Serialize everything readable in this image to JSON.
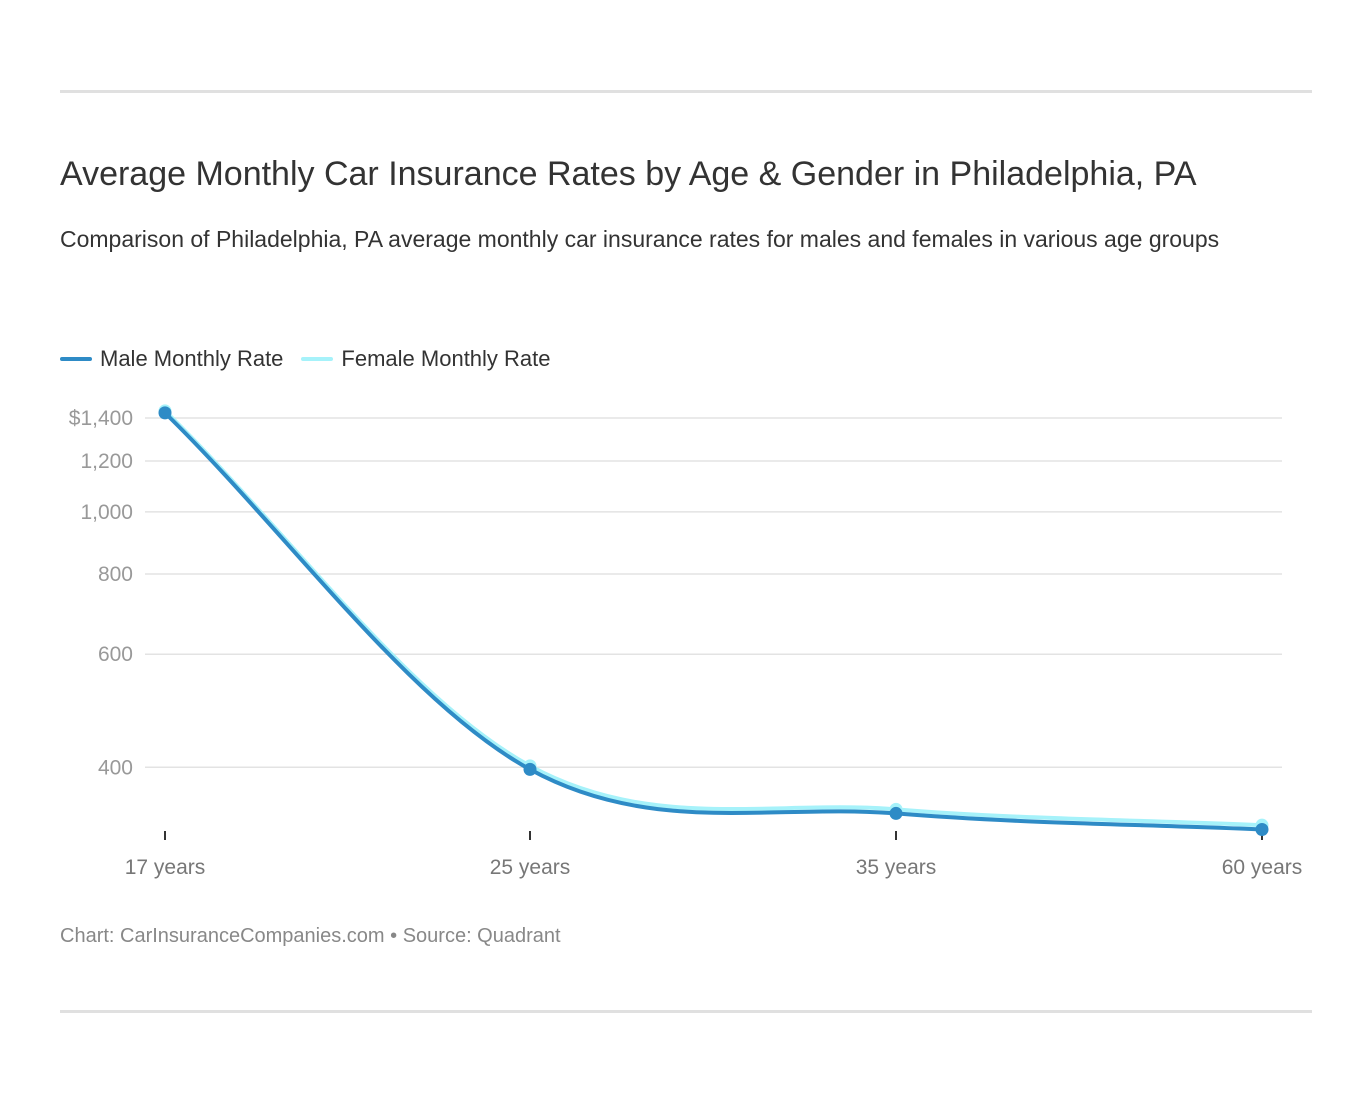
{
  "chart_data": {
    "type": "line",
    "title": "Average Monthly Car Insurance Rates by Age & Gender in Philadelphia, PA",
    "subtitle": "Comparison of Philadelphia, PA average monthly car insurance rates for males and females in various age groups",
    "categories": [
      "17 years",
      "25 years",
      "35 years",
      "60 years"
    ],
    "series": [
      {
        "name": "Male Monthly Rate",
        "color": "#2e8bc6",
        "values": [
          1426,
          397,
          339,
          320
        ]
      },
      {
        "name": "Female Monthly Rate",
        "color": "#a6f2fa",
        "values": [
          1436,
          402,
          344,
          325
        ]
      }
    ],
    "y_scale": "log",
    "y_ticks": [
      {
        "value": 400,
        "label": "400"
      },
      {
        "value": 600,
        "label": "600"
      },
      {
        "value": 800,
        "label": "800"
      },
      {
        "value": 1000,
        "label": "1,000"
      },
      {
        "value": 1200,
        "label": "1,200"
      },
      {
        "value": 1400,
        "label": "$1,400"
      }
    ],
    "grid": true,
    "legend_position": "top-left",
    "xlabel": "",
    "ylabel": ""
  },
  "footer": "Chart: CarInsuranceCompanies.com • Source: Quadrant"
}
